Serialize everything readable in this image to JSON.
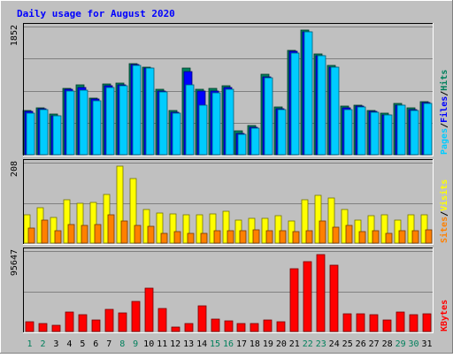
{
  "chart_data": {
    "type": "bar",
    "title": "Daily usage for August 2020",
    "categories": [
      "1",
      "2",
      "3",
      "4",
      "5",
      "6",
      "7",
      "8",
      "9",
      "10",
      "11",
      "12",
      "13",
      "14",
      "15",
      "16",
      "17",
      "18",
      "19",
      "20",
      "21",
      "22",
      "23",
      "24",
      "25",
      "26",
      "27",
      "28",
      "29",
      "30",
      "31"
    ],
    "weekend_days": [
      "1",
      "2",
      "8",
      "9",
      "15",
      "16",
      "22",
      "23",
      "29",
      "30"
    ],
    "panels": [
      {
        "id": "hits_files_pages",
        "ymax_label": "1852",
        "ylim": [
          0,
          1852
        ],
        "legend": [
          "Pages",
          "/",
          "Files",
          "/",
          "Hits"
        ],
        "series": [
          {
            "name": "Hits",
            "color": "#00805c",
            "values": [
              640,
              680,
              590,
              960,
              1010,
              820,
              1020,
              1030,
              1320,
              1270,
              950,
              640,
              1250,
              940,
              960,
              1000,
              340,
              420,
              1160,
              690,
              1510,
              1800,
              1450,
              1290,
              700,
              720,
              640,
              600,
              740,
              680,
              770
            ]
          },
          {
            "name": "Files",
            "color": "#0000ff",
            "values": [
              620,
              660,
              560,
              940,
              970,
              800,
              990,
              1010,
              1300,
              1250,
              920,
              610,
              1200,
              920,
              920,
              970,
              310,
              390,
              1120,
              660,
              1490,
              1780,
              1430,
              1270,
              680,
              700,
              620,
              580,
              720,
              650,
              750
            ]
          },
          {
            "name": "Pages",
            "color": "#00ccff",
            "values": [
              600,
              650,
              560,
              920,
              930,
              780,
              970,
              990,
              1290,
              1250,
              910,
              600,
              1010,
              720,
              900,
              950,
              300,
              380,
              1110,
              650,
              1470,
              1770,
              1430,
              1260,
              650,
              690,
              610,
              570,
              720,
              640,
              740
            ]
          }
        ]
      },
      {
        "id": "visits_sites",
        "ymax_label": "208",
        "ylim": [
          0,
          208
        ],
        "legend": [
          "Sites",
          "/",
          "Visits"
        ],
        "series": [
          {
            "name": "Visits",
            "color": "#ffff00",
            "values": [
              72,
              92,
              66,
              111,
              102,
              106,
              125,
              198,
              166,
              87,
              77,
              76,
              74,
              72,
              76,
              82,
              59,
              64,
              64,
              70,
              58,
              111,
              124,
              116,
              87,
              59,
              70,
              72,
              59,
              72,
              72
            ]
          },
          {
            "name": "Sites",
            "color": "#ff8000",
            "values": [
              38,
              60,
              32,
              48,
              45,
              47,
              74,
              57,
              46,
              44,
              26,
              30,
              24,
              26,
              32,
              33,
              32,
              34,
              31,
              32,
              30,
              32,
              56,
              41,
              45,
              30,
              33,
              26,
              31,
              31,
              34
            ]
          }
        ]
      },
      {
        "id": "kbytes",
        "ymax_label": "95647",
        "ylim": [
          0,
          95647
        ],
        "legend": [
          "KBytes"
        ],
        "series": [
          {
            "name": "KBytes",
            "color": "#ff0000",
            "values": [
              11200,
              9800,
              7800,
              23000,
              19600,
              14000,
              25800,
              22400,
              36000,
              52000,
              27800,
              5200,
              9800,
              31000,
              15000,
              12600,
              9200,
              9000,
              14000,
              11500,
              75000,
              83000,
              91000,
              79000,
              21000,
              21500,
              19800,
              14000,
              23500,
              20000,
              21500
            ]
          }
        ]
      }
    ]
  }
}
